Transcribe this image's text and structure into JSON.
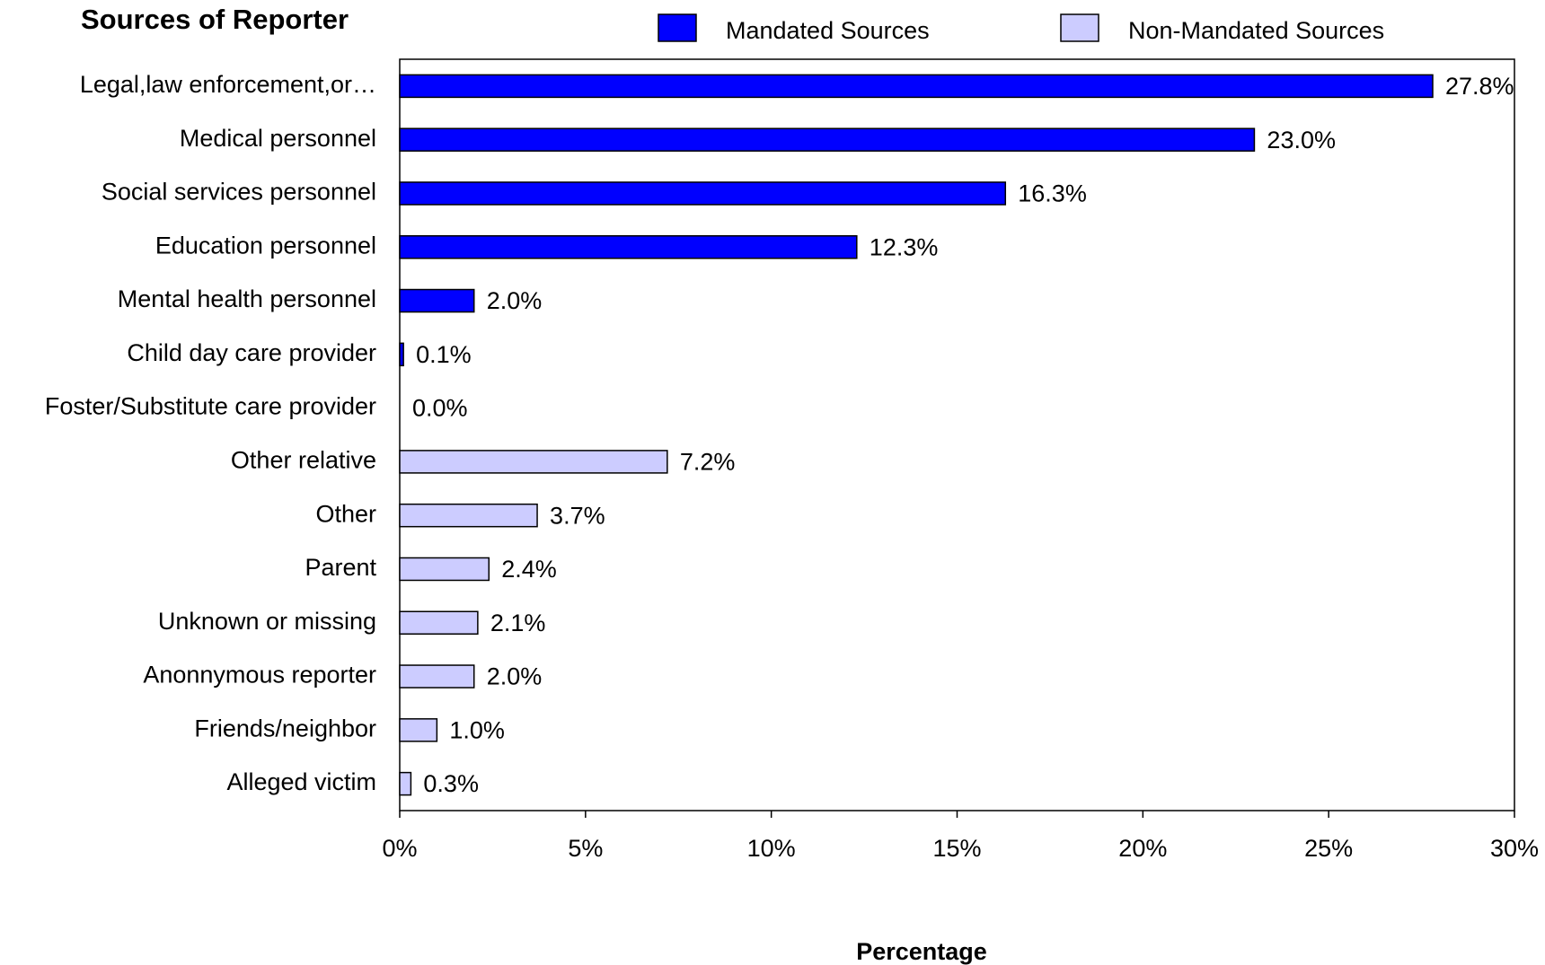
{
  "chart_data": {
    "type": "bar",
    "orientation": "horizontal",
    "title": "Sources of Reporter",
    "x_label": "Percentage",
    "categories": [
      "Legal,law enforcement,or…",
      "Medical personnel",
      "Social services personnel",
      "Education personnel",
      "Mental health personnel",
      "Child day care provider",
      "Foster/Substitute care provider",
      "Other relative",
      "Other",
      "Parent",
      "Unknown or missing",
      "Anonnymous reporter",
      "Friends/neighbor",
      "Alleged victim"
    ],
    "series": [
      {
        "name": "Mandated Sources",
        "color": "#0000ff",
        "values": [
          27.8,
          23.0,
          16.3,
          12.3,
          2.0,
          0.1,
          0.0,
          null,
          null,
          null,
          null,
          null,
          null,
          null
        ],
        "value_labels": [
          "27.8%",
          "23.0%",
          "16.3%",
          "12.3%",
          "2.0%",
          "0.1%",
          "0.0%",
          null,
          null,
          null,
          null,
          null,
          null,
          null
        ]
      },
      {
        "name": "Non-Mandated Sources",
        "color": "#ccccff",
        "values": [
          null,
          null,
          null,
          null,
          null,
          null,
          null,
          7.2,
          3.7,
          2.4,
          2.1,
          2.0,
          1.0,
          0.3
        ],
        "value_labels": [
          null,
          null,
          null,
          null,
          null,
          null,
          null,
          "7.2%",
          "3.7%",
          "2.4%",
          "2.1%",
          "2.0%",
          "1.0%",
          "0.3%"
        ]
      }
    ],
    "xlim": [
      0,
      30
    ],
    "xticks": [
      {
        "value": 0,
        "label": "0%"
      },
      {
        "value": 5,
        "label": "5%"
      },
      {
        "value": 10,
        "label": "10%"
      },
      {
        "value": 15,
        "label": "15%"
      },
      {
        "value": 20,
        "label": "20%"
      },
      {
        "value": 25,
        "label": "25%"
      },
      {
        "value": 30,
        "label": "30%"
      }
    ],
    "grid": false,
    "legend": "top"
  }
}
